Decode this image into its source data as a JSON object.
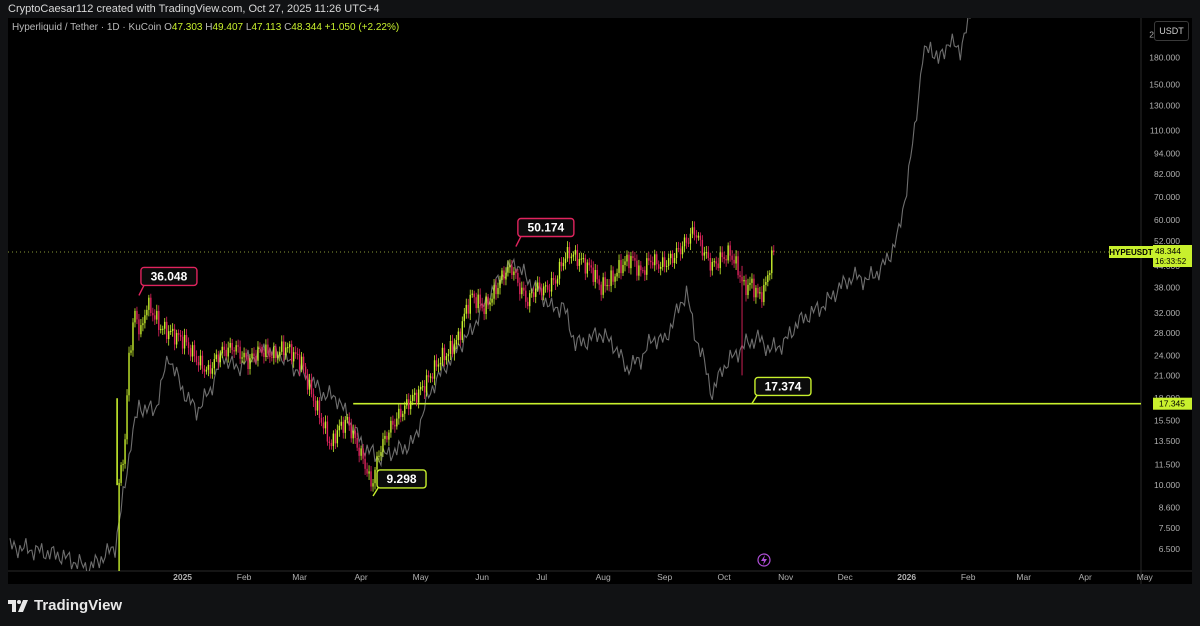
{
  "credit": "CryptoCaesar112 created with TradingView.com, Oct 27, 2025 11:26 UTC+4",
  "legend": {
    "symbol": "Hyperliquid / Tether · 1D · KuCoin",
    "open_label": "O",
    "open": "47.303",
    "high_label": "H",
    "high": "49.407",
    "low_label": "L",
    "low": "47.113",
    "close_label": "C",
    "close": "48.344",
    "change": "+1.050 (+2.22%)"
  },
  "unit_button": "USDT",
  "brand": "TradingView",
  "icons": {
    "brand_logo": "tradingview-logo-icon",
    "bolt": "lightning-bolt-icon"
  },
  "colors": {
    "up": "#c8f02d",
    "down": "#e0245e",
    "overlay": "#6e6e6e",
    "support": "#c8f02d",
    "label_red": "#e0245e",
    "label_green": "#c8f02d"
  },
  "chart_data": {
    "type": "candlestick",
    "symbol": "HYPEUSDT",
    "title": "Hyperliquid / Tether · 1D · KuCoin",
    "y_scale": "log",
    "ylim": [
      5.6,
      235
    ],
    "x_ticks": [
      {
        "date": "2025-01-01",
        "label": "2025"
      },
      {
        "date": "2025-02-01",
        "label": "Feb"
      },
      {
        "date": "2025-03-01",
        "label": "Mar"
      },
      {
        "date": "2025-04-01",
        "label": "Apr"
      },
      {
        "date": "2025-05-01",
        "label": "May"
      },
      {
        "date": "2025-06-01",
        "label": "Jun"
      },
      {
        "date": "2025-07-01",
        "label": "Jul"
      },
      {
        "date": "2025-08-01",
        "label": "Aug"
      },
      {
        "date": "2025-09-01",
        "label": "Sep"
      },
      {
        "date": "2025-10-01",
        "label": "Oct"
      },
      {
        "date": "2025-11-01",
        "label": "Nov"
      },
      {
        "date": "2025-12-01",
        "label": "Dec"
      },
      {
        "date": "2026-01-01",
        "label": "2026"
      },
      {
        "date": "2026-02-01",
        "label": "Feb"
      },
      {
        "date": "2026-03-01",
        "label": "Mar"
      },
      {
        "date": "2026-04-01",
        "label": "Apr"
      },
      {
        "date": "2026-05-01",
        "label": "May"
      }
    ],
    "y_ticks": [
      "6.500",
      "7.500",
      "8.600",
      "10.000",
      "11.500",
      "13.500",
      "15.500",
      "18.000",
      "21.000",
      "24.000",
      "28.000",
      "32.000",
      "38.000",
      "44.000",
      "52.000",
      "60.000",
      "70.000",
      "82.000",
      "94.000",
      "110.000",
      "130.000",
      "150.000",
      "180.000",
      "210.000"
    ],
    "price_anchors": [
      {
        "date": "2024-11-29",
        "price": 4.0
      },
      {
        "date": "2024-11-30",
        "price": 10.0
      },
      {
        "date": "2024-12-03",
        "price": 13.5
      },
      {
        "date": "2024-12-05",
        "price": 24.0
      },
      {
        "date": "2024-12-08",
        "price": 32.0
      },
      {
        "date": "2024-12-11",
        "price": 28.0
      },
      {
        "date": "2024-12-14",
        "price": 34.0
      },
      {
        "date": "2024-12-17",
        "price": 32.0
      },
      {
        "date": "2024-12-21",
        "price": 29.0
      },
      {
        "date": "2024-12-26",
        "price": 28.0
      },
      {
        "date": "2025-01-02",
        "price": 26.5
      },
      {
        "date": "2025-01-09",
        "price": 23.0
      },
      {
        "date": "2025-01-14",
        "price": 21.5
      },
      {
        "date": "2025-01-20",
        "price": 24.5
      },
      {
        "date": "2025-01-27",
        "price": 25.5
      },
      {
        "date": "2025-02-03",
        "price": 23.0
      },
      {
        "date": "2025-02-09",
        "price": 25.0
      },
      {
        "date": "2025-02-16",
        "price": 24.0
      },
      {
        "date": "2025-02-22",
        "price": 25.5
      },
      {
        "date": "2025-03-02",
        "price": 23.0
      },
      {
        "date": "2025-03-07",
        "price": 18.5
      },
      {
        "date": "2025-03-12",
        "price": 15.5
      },
      {
        "date": "2025-03-17",
        "price": 13.0
      },
      {
        "date": "2025-03-20",
        "price": 14.5
      },
      {
        "date": "2025-03-25",
        "price": 15.5
      },
      {
        "date": "2025-03-29",
        "price": 13.5
      },
      {
        "date": "2025-04-03",
        "price": 11.5
      },
      {
        "date": "2025-04-06",
        "price": 10.0
      },
      {
        "date": "2025-04-08",
        "price": 11.0
      },
      {
        "date": "2025-04-10",
        "price": 12.5
      },
      {
        "date": "2025-04-15",
        "price": 14.5
      },
      {
        "date": "2025-04-20",
        "price": 16.0
      },
      {
        "date": "2025-04-25",
        "price": 17.5
      },
      {
        "date": "2025-05-01",
        "price": 19.0
      },
      {
        "date": "2025-05-06",
        "price": 21.0
      },
      {
        "date": "2025-05-11",
        "price": 23.5
      },
      {
        "date": "2025-05-15",
        "price": 24.5
      },
      {
        "date": "2025-05-20",
        "price": 27.0
      },
      {
        "date": "2025-05-24",
        "price": 33.0
      },
      {
        "date": "2025-05-27",
        "price": 36.0
      },
      {
        "date": "2025-06-02",
        "price": 33.0
      },
      {
        "date": "2025-06-07",
        "price": 36.5
      },
      {
        "date": "2025-06-12",
        "price": 42.0
      },
      {
        "date": "2025-06-16",
        "price": 43.5
      },
      {
        "date": "2025-06-20",
        "price": 38.0
      },
      {
        "date": "2025-06-24",
        "price": 34.5
      },
      {
        "date": "2025-06-28",
        "price": 38.0
      },
      {
        "date": "2025-07-03",
        "price": 37.5
      },
      {
        "date": "2025-07-08",
        "price": 40.0
      },
      {
        "date": "2025-07-12",
        "price": 46.0
      },
      {
        "date": "2025-07-15",
        "price": 48.0
      },
      {
        "date": "2025-07-20",
        "price": 46.0
      },
      {
        "date": "2025-07-26",
        "price": 43.0
      },
      {
        "date": "2025-07-31",
        "price": 38.0
      },
      {
        "date": "2025-08-05",
        "price": 40.0
      },
      {
        "date": "2025-08-10",
        "price": 44.0
      },
      {
        "date": "2025-08-15",
        "price": 46.5
      },
      {
        "date": "2025-08-20",
        "price": 42.0
      },
      {
        "date": "2025-08-25",
        "price": 46.0
      },
      {
        "date": "2025-08-30",
        "price": 44.0
      },
      {
        "date": "2025-09-05",
        "price": 46.5
      },
      {
        "date": "2025-09-12",
        "price": 52.0
      },
      {
        "date": "2025-09-16",
        "price": 56.0
      },
      {
        "date": "2025-09-21",
        "price": 48.0
      },
      {
        "date": "2025-09-25",
        "price": 44.0
      },
      {
        "date": "2025-09-30",
        "price": 46.5
      },
      {
        "date": "2025-10-04",
        "price": 48.0
      },
      {
        "date": "2025-10-08",
        "price": 43.0
      },
      {
        "date": "2025-10-11",
        "price": 38.0
      },
      {
        "date": "2025-10-15",
        "price": 39.0
      },
      {
        "date": "2025-10-18",
        "price": 36.0
      },
      {
        "date": "2025-10-21",
        "price": 37.0
      },
      {
        "date": "2025-10-24",
        "price": 44.0
      },
      {
        "date": "2025-10-26",
        "price": 48.344
      }
    ],
    "overlay_series_anchors": [
      {
        "date": "2024-10-06",
        "value": 6.6
      },
      {
        "date": "2024-10-14",
        "value": 6.5
      },
      {
        "date": "2024-10-21",
        "value": 6.4
      },
      {
        "date": "2024-11-01",
        "value": 6.2
      },
      {
        "date": "2024-11-15",
        "value": 5.7
      },
      {
        "date": "2024-11-28",
        "value": 6.6
      },
      {
        "date": "2024-12-03",
        "value": 10.0
      },
      {
        "date": "2024-12-06",
        "value": 13.5
      },
      {
        "date": "2024-12-10",
        "value": 17.0
      },
      {
        "date": "2024-12-18",
        "value": 16.5
      },
      {
        "date": "2024-12-25",
        "value": 24.0
      },
      {
        "date": "2025-01-01",
        "value": 19.0
      },
      {
        "date": "2025-01-08",
        "value": 16.5
      },
      {
        "date": "2025-01-15",
        "value": 19.0
      },
      {
        "date": "2025-01-21",
        "value": 24.0
      },
      {
        "date": "2025-01-28",
        "value": 22.0
      },
      {
        "date": "2025-02-04",
        "value": 23.5
      },
      {
        "date": "2025-02-12",
        "value": 25.0
      },
      {
        "date": "2025-02-20",
        "value": 24.0
      },
      {
        "date": "2025-02-27",
        "value": 22.0
      },
      {
        "date": "2025-03-06",
        "value": 20.5
      },
      {
        "date": "2025-03-13",
        "value": 18.5
      },
      {
        "date": "2025-03-20",
        "value": 18.0
      },
      {
        "date": "2025-03-26",
        "value": 15.5
      },
      {
        "date": "2025-04-02",
        "value": 13.0
      },
      {
        "date": "2025-04-10",
        "value": 12.0
      },
      {
        "date": "2025-04-16",
        "value": 12.5
      },
      {
        "date": "2025-04-22",
        "value": 12.8
      },
      {
        "date": "2025-04-28",
        "value": 13.5
      },
      {
        "date": "2025-05-03",
        "value": 17.0
      },
      {
        "date": "2025-05-08",
        "value": 20.0
      },
      {
        "date": "2025-05-14",
        "value": 22.5
      },
      {
        "date": "2025-05-20",
        "value": 25.5
      },
      {
        "date": "2025-05-26",
        "value": 28.0
      },
      {
        "date": "2025-06-01",
        "value": 33.0
      },
      {
        "date": "2025-06-07",
        "value": 38.0
      },
      {
        "date": "2025-06-12",
        "value": 42.0
      },
      {
        "date": "2025-06-18",
        "value": 45.0
      },
      {
        "date": "2025-06-24",
        "value": 40.0
      },
      {
        "date": "2025-06-30",
        "value": 37.0
      },
      {
        "date": "2025-07-06",
        "value": 33.0
      },
      {
        "date": "2025-07-12",
        "value": 33.5
      },
      {
        "date": "2025-07-18",
        "value": 26.0
      },
      {
        "date": "2025-07-24",
        "value": 26.5
      },
      {
        "date": "2025-07-30",
        "value": 28.0
      },
      {
        "date": "2025-08-06",
        "value": 26.0
      },
      {
        "date": "2025-08-13",
        "value": 22.0
      },
      {
        "date": "2025-08-20",
        "value": 23.5
      },
      {
        "date": "2025-08-26",
        "value": 27.0
      },
      {
        "date": "2025-09-01",
        "value": 26.5
      },
      {
        "date": "2025-09-07",
        "value": 32.0
      },
      {
        "date": "2025-09-12",
        "value": 37.0
      },
      {
        "date": "2025-09-16",
        "value": 28.0
      },
      {
        "date": "2025-09-20",
        "value": 24.0
      },
      {
        "date": "2025-09-25",
        "value": 18.5
      },
      {
        "date": "2025-09-30",
        "value": 22.0
      },
      {
        "date": "2025-10-06",
        "value": 24.0
      },
      {
        "date": "2025-10-12",
        "value": 26.0
      },
      {
        "date": "2025-10-18",
        "value": 27.0
      },
      {
        "date": "2025-10-24",
        "value": 25.0
      },
      {
        "date": "2025-10-31",
        "value": 26.0
      },
      {
        "date": "2025-11-07",
        "value": 30.0
      },
      {
        "date": "2025-11-14",
        "value": 32.0
      },
      {
        "date": "2025-11-21",
        "value": 34.0
      },
      {
        "date": "2025-11-28",
        "value": 38.0
      },
      {
        "date": "2025-12-05",
        "value": 41.0
      },
      {
        "date": "2025-12-12",
        "value": 40.0
      },
      {
        "date": "2025-12-19",
        "value": 43.0
      },
      {
        "date": "2025-12-24",
        "value": 48.0
      },
      {
        "date": "2025-12-28",
        "value": 55.0
      },
      {
        "date": "2026-01-01",
        "value": 75.0
      },
      {
        "date": "2026-01-05",
        "value": 110.0
      },
      {
        "date": "2026-01-09",
        "value": 180.0
      },
      {
        "date": "2026-01-13",
        "value": 195.0
      },
      {
        "date": "2026-01-17",
        "value": 175.0
      },
      {
        "date": "2026-01-22",
        "value": 200.0
      },
      {
        "date": "2026-01-28",
        "value": 190.0
      },
      {
        "date": "2026-02-02",
        "value": 235.0
      }
    ],
    "annotations": [
      {
        "text": "36.048",
        "date": "2024-12-10",
        "price": 36.048,
        "color": "red"
      },
      {
        "text": "50.174",
        "date": "2025-06-18",
        "price": 50.174,
        "color": "red"
      },
      {
        "text": "9.298",
        "date": "2025-04-07",
        "price": 9.298,
        "color": "green"
      },
      {
        "text": "17.374",
        "date": "2025-10-15",
        "price": 17.374,
        "color": "green"
      }
    ],
    "support_line": {
      "price": 17.345,
      "start_date": "2025-03-28",
      "label": "17.345"
    },
    "current_price": {
      "symbol": "HYPEUSDT",
      "price": "48.344",
      "countdown": "16:33:52",
      "dotted_line": true
    },
    "wick_low": {
      "date": "2025-10-10",
      "price": 21.0
    },
    "grid": false
  }
}
